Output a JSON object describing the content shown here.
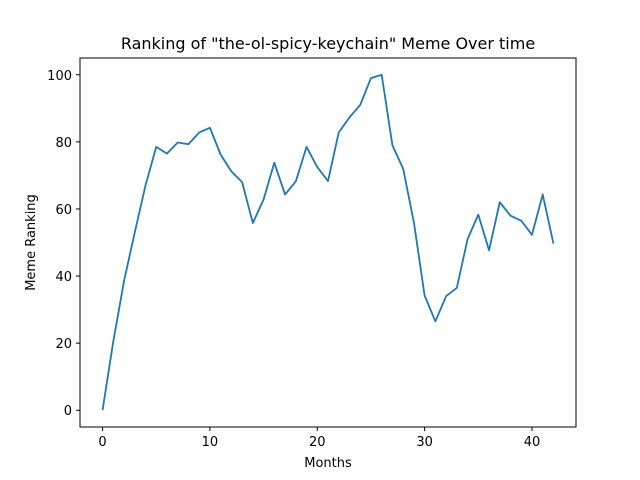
{
  "chart_data": {
    "type": "line",
    "title": "Ranking of \"the-ol-spicy-keychain\" Meme Over time",
    "xlabel": "Months",
    "ylabel": "Meme Ranking",
    "xlim": [
      -2.1,
      44.1
    ],
    "ylim": [
      -5,
      105
    ],
    "x_ticks": [
      0,
      10,
      20,
      30,
      40
    ],
    "y_ticks": [
      0,
      20,
      40,
      60,
      80,
      100
    ],
    "grid": false,
    "legend": "none",
    "series": [
      {
        "color": "#1f77b4",
        "x": [
          0,
          1,
          2,
          3,
          4,
          5,
          6,
          7,
          8,
          9,
          10,
          11,
          12,
          13,
          14,
          15,
          16,
          17,
          18,
          19,
          20,
          21,
          22,
          23,
          24,
          25,
          26,
          27,
          28,
          29,
          30,
          31,
          32,
          33,
          34,
          35,
          36,
          37,
          38,
          39,
          40,
          41,
          42
        ],
        "values": [
          0,
          20.5,
          38.5,
          53,
          67,
          78.5,
          76.5,
          79.8,
          79.3,
          82.8,
          84.2,
          76.2,
          71.2,
          68,
          55.8,
          62.8,
          73.8,
          64.3,
          68.2,
          78.5,
          72.5,
          68.3,
          82.8,
          87.3,
          91,
          99,
          100,
          79,
          72,
          56,
          34.2,
          26.5,
          34,
          36.5,
          51,
          58.3,
          47.7,
          62,
          58,
          56.5,
          52.3,
          64.3,
          49.7
        ]
      }
    ]
  }
}
